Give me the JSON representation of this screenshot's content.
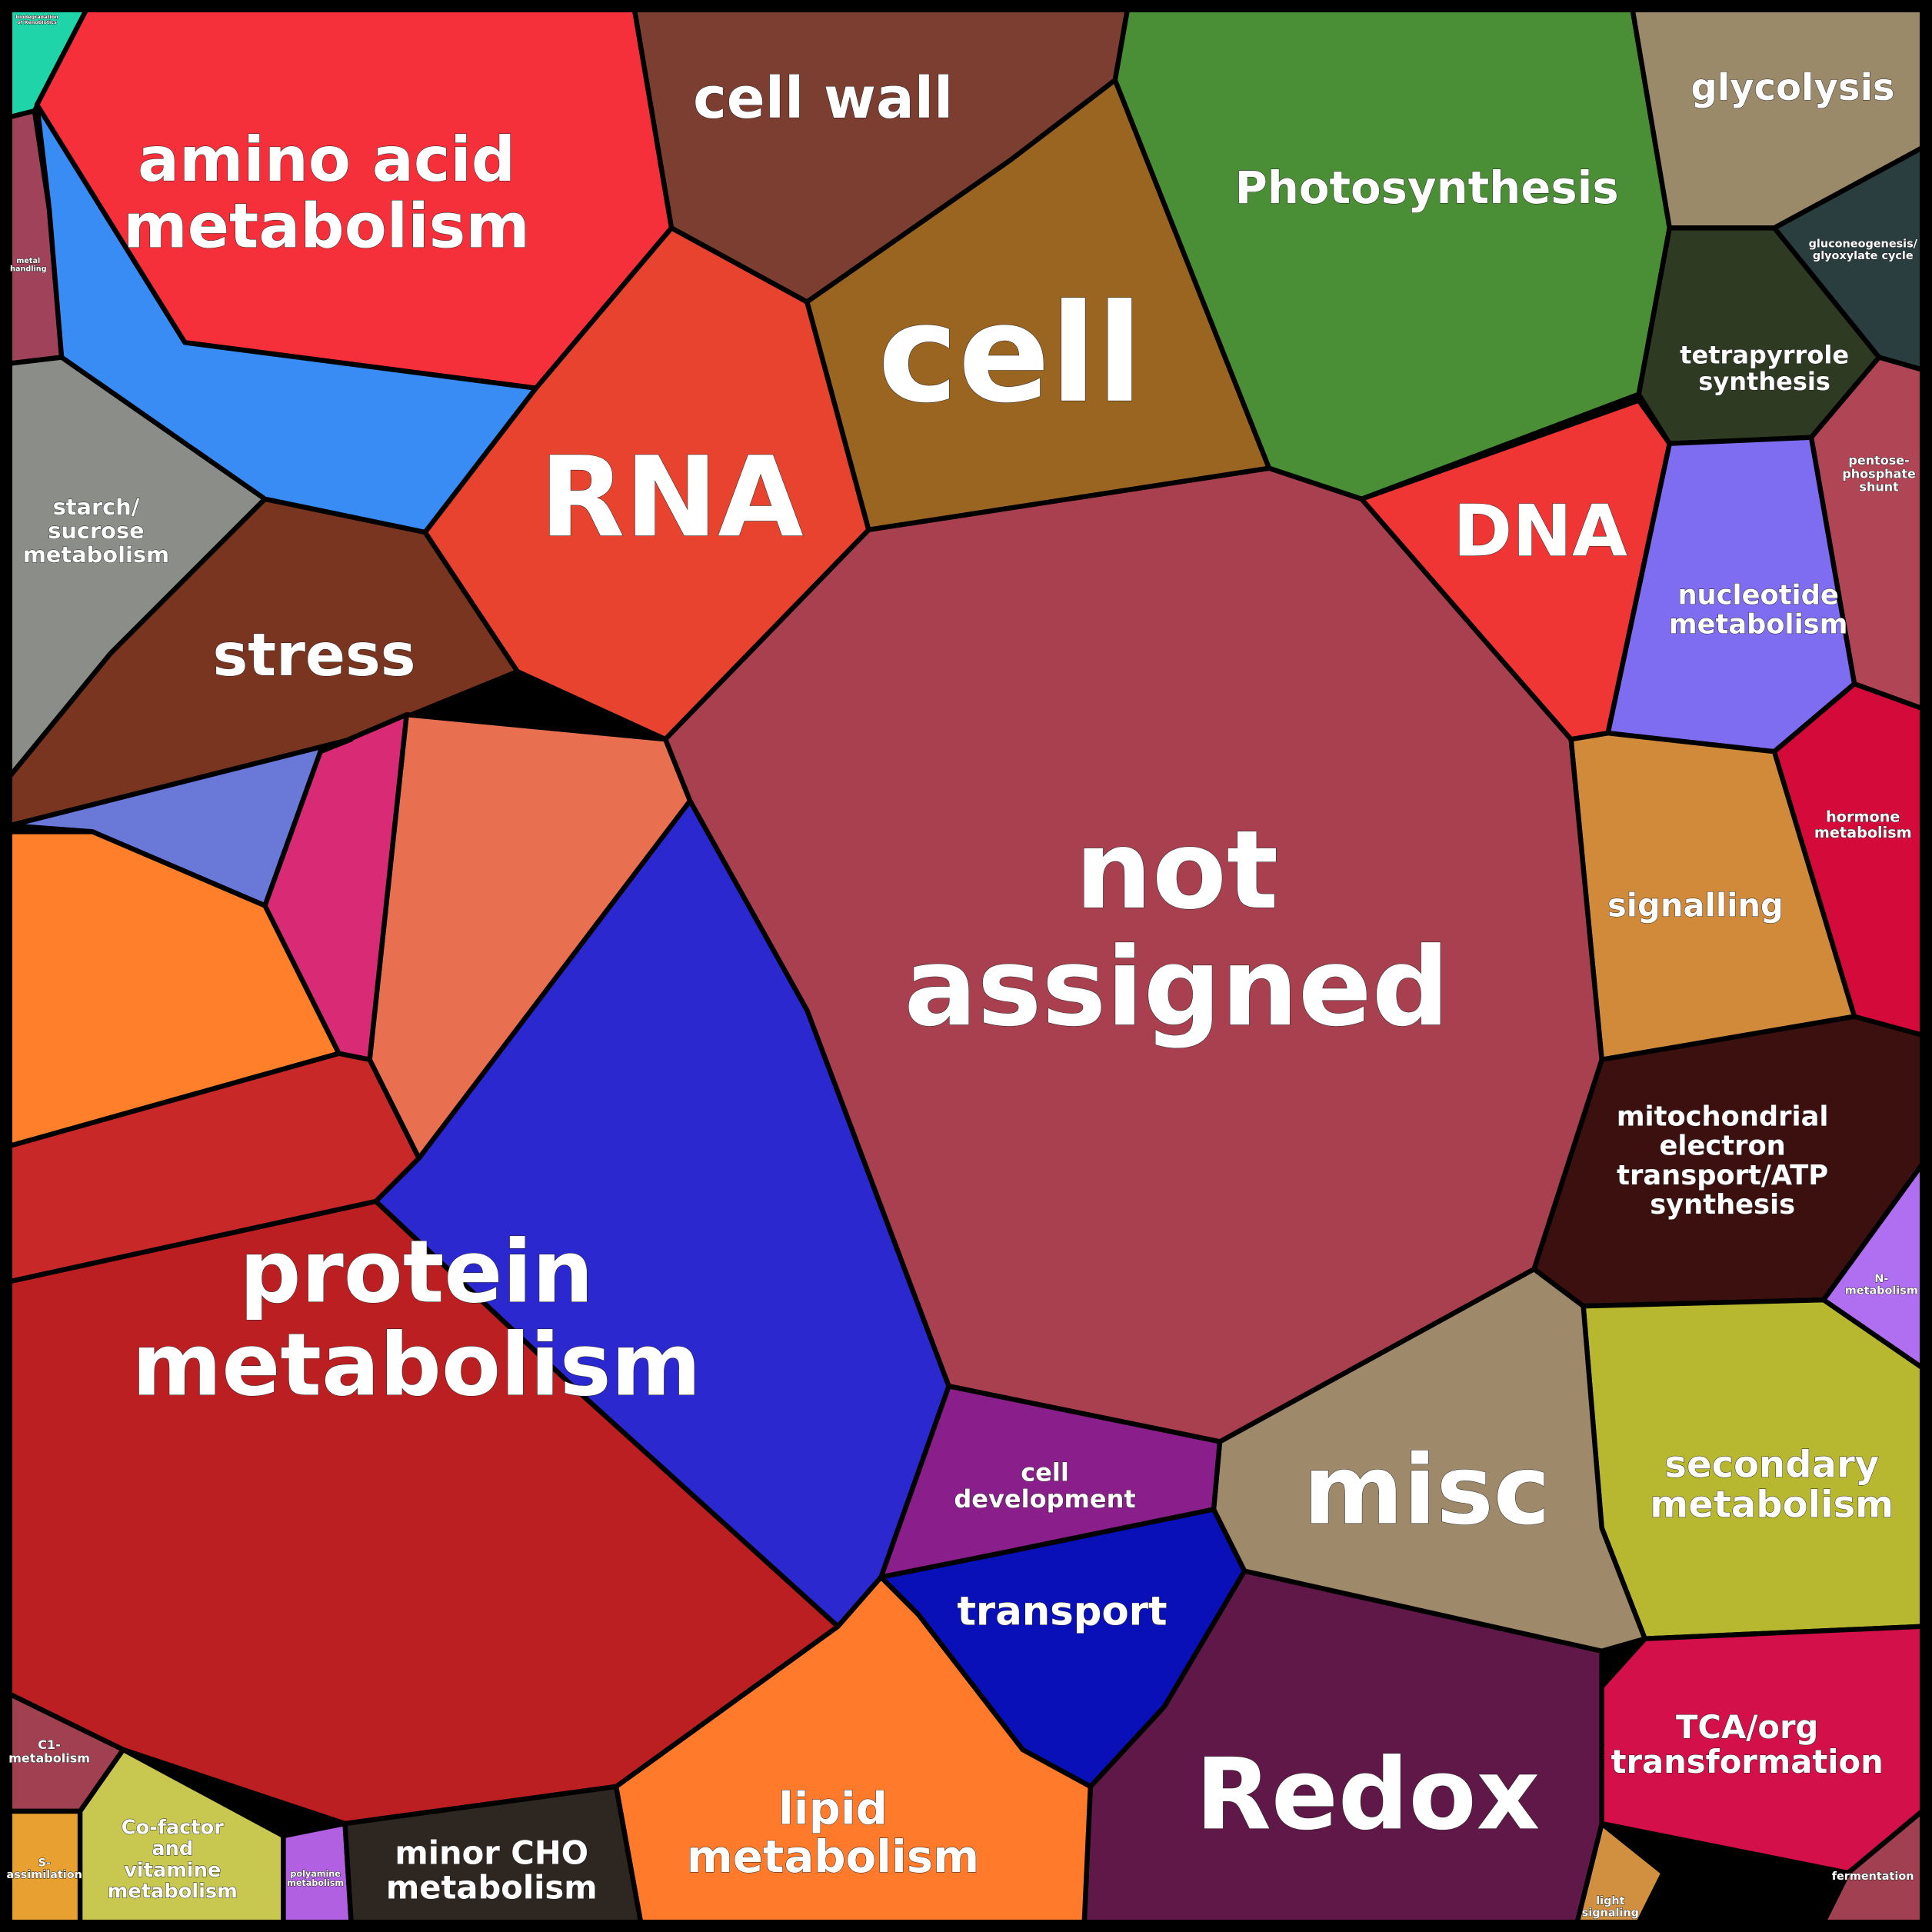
{
  "regions": [
    {
      "label": [
        "biodegradation",
        "of Xenobiotics"
      ],
      "color": "#1ed4a8"
    },
    {
      "label": [
        "metal",
        "handling"
      ],
      "color": "#a0435a"
    },
    {
      "label": [
        "amino acid",
        "metabolism"
      ],
      "color": "#f5303a"
    },
    {
      "color": "#3a8cf5"
    },
    {
      "label": [
        "starch/",
        "sucrose",
        "metabolism"
      ],
      "color": "#8b8d88"
    },
    {
      "label": [
        "stress"
      ],
      "color": "#7a3520"
    },
    {
      "label": [
        "RNA"
      ],
      "color": "#e8432e"
    },
    {
      "label": [
        "cell wall"
      ],
      "color": "#7b3e30"
    },
    {
      "label": [
        "cell"
      ],
      "color": "#9a6520"
    },
    {
      "label": [
        "Photosynthesis"
      ],
      "color": "#4a8f35"
    },
    {
      "label": [
        "glycolysis"
      ],
      "color": "#9a8a6a"
    },
    {
      "label": [
        "gluconeogenesis/",
        "glyoxylate cycle"
      ],
      "color": "#2a3e40"
    },
    {
      "label": [
        "tetrapyrrole",
        "synthesis"
      ],
      "color": "#2e3b22"
    },
    {
      "label": [
        "pentose-",
        "phosphate",
        "shunt"
      ],
      "color": "#b04556"
    },
    {
      "label": [
        "DNA"
      ],
      "color": "#f03535"
    },
    {
      "label": [
        "nucleotide",
        "metabolism"
      ],
      "color": "#7e6df0"
    },
    {
      "label": [
        "hormone",
        "metabolism"
      ],
      "color": "#d40a3a"
    },
    {
      "label": [
        "signalling"
      ],
      "color": "#d08a3a"
    },
    {
      "label": [
        "mitochondrial",
        "electron",
        "transport/ATP",
        "synthesis"
      ],
      "color": "#3d1010"
    },
    {
      "label": [
        "N-",
        "metabolism"
      ],
      "color": "#b06ef0"
    },
    {
      "label": [
        "secondary",
        "metabolism"
      ],
      "color": "#b8b830"
    },
    {
      "label": [
        "TCA/org",
        "transformation"
      ],
      "color": "#d4104a"
    },
    {
      "label": [
        "fermentation"
      ],
      "color": "#a04050"
    },
    {
      "label": [
        "light",
        "signaling"
      ],
      "color": "#d09040"
    },
    {
      "label": [
        "Redox"
      ],
      "color": "#601848"
    },
    {
      "label": [
        "misc"
      ],
      "color": "#9e8a6a"
    },
    {
      "label": [
        "not",
        "assigned"
      ],
      "color": "#a84050"
    },
    {
      "label": [
        "cell",
        "development"
      ],
      "color": "#8a1e8a"
    },
    {
      "label": [
        "transport"
      ],
      "color": "#0a10b8"
    },
    {
      "label": [
        "lipid",
        "metabolism"
      ],
      "color": "#ff7a2a"
    },
    {
      "color": "#2b28d0"
    },
    {
      "label": [
        "protein",
        "metabolism"
      ],
      "color": "#bc1f22"
    },
    {
      "color": "#e87050"
    },
    {
      "color": "#d82a75"
    },
    {
      "color": "#6a78d8"
    },
    {
      "color": "#ff7f2a"
    },
    {
      "color": "#c82828"
    },
    {
      "label": [
        "C1-",
        "metabolism"
      ],
      "color": "#a04050"
    },
    {
      "label": [
        "S-",
        "assimilation"
      ],
      "color": "#e8a030"
    },
    {
      "label": [
        "Co-factor",
        "and",
        "vitamine",
        "metabolism"
      ],
      "color": "#c8c850"
    },
    {
      "label": [
        "polyamine",
        "metabolism"
      ],
      "color": "#b060e0"
    },
    {
      "label": [
        "minor CHO",
        "metabolism"
      ],
      "color": "#2e2620"
    }
  ]
}
